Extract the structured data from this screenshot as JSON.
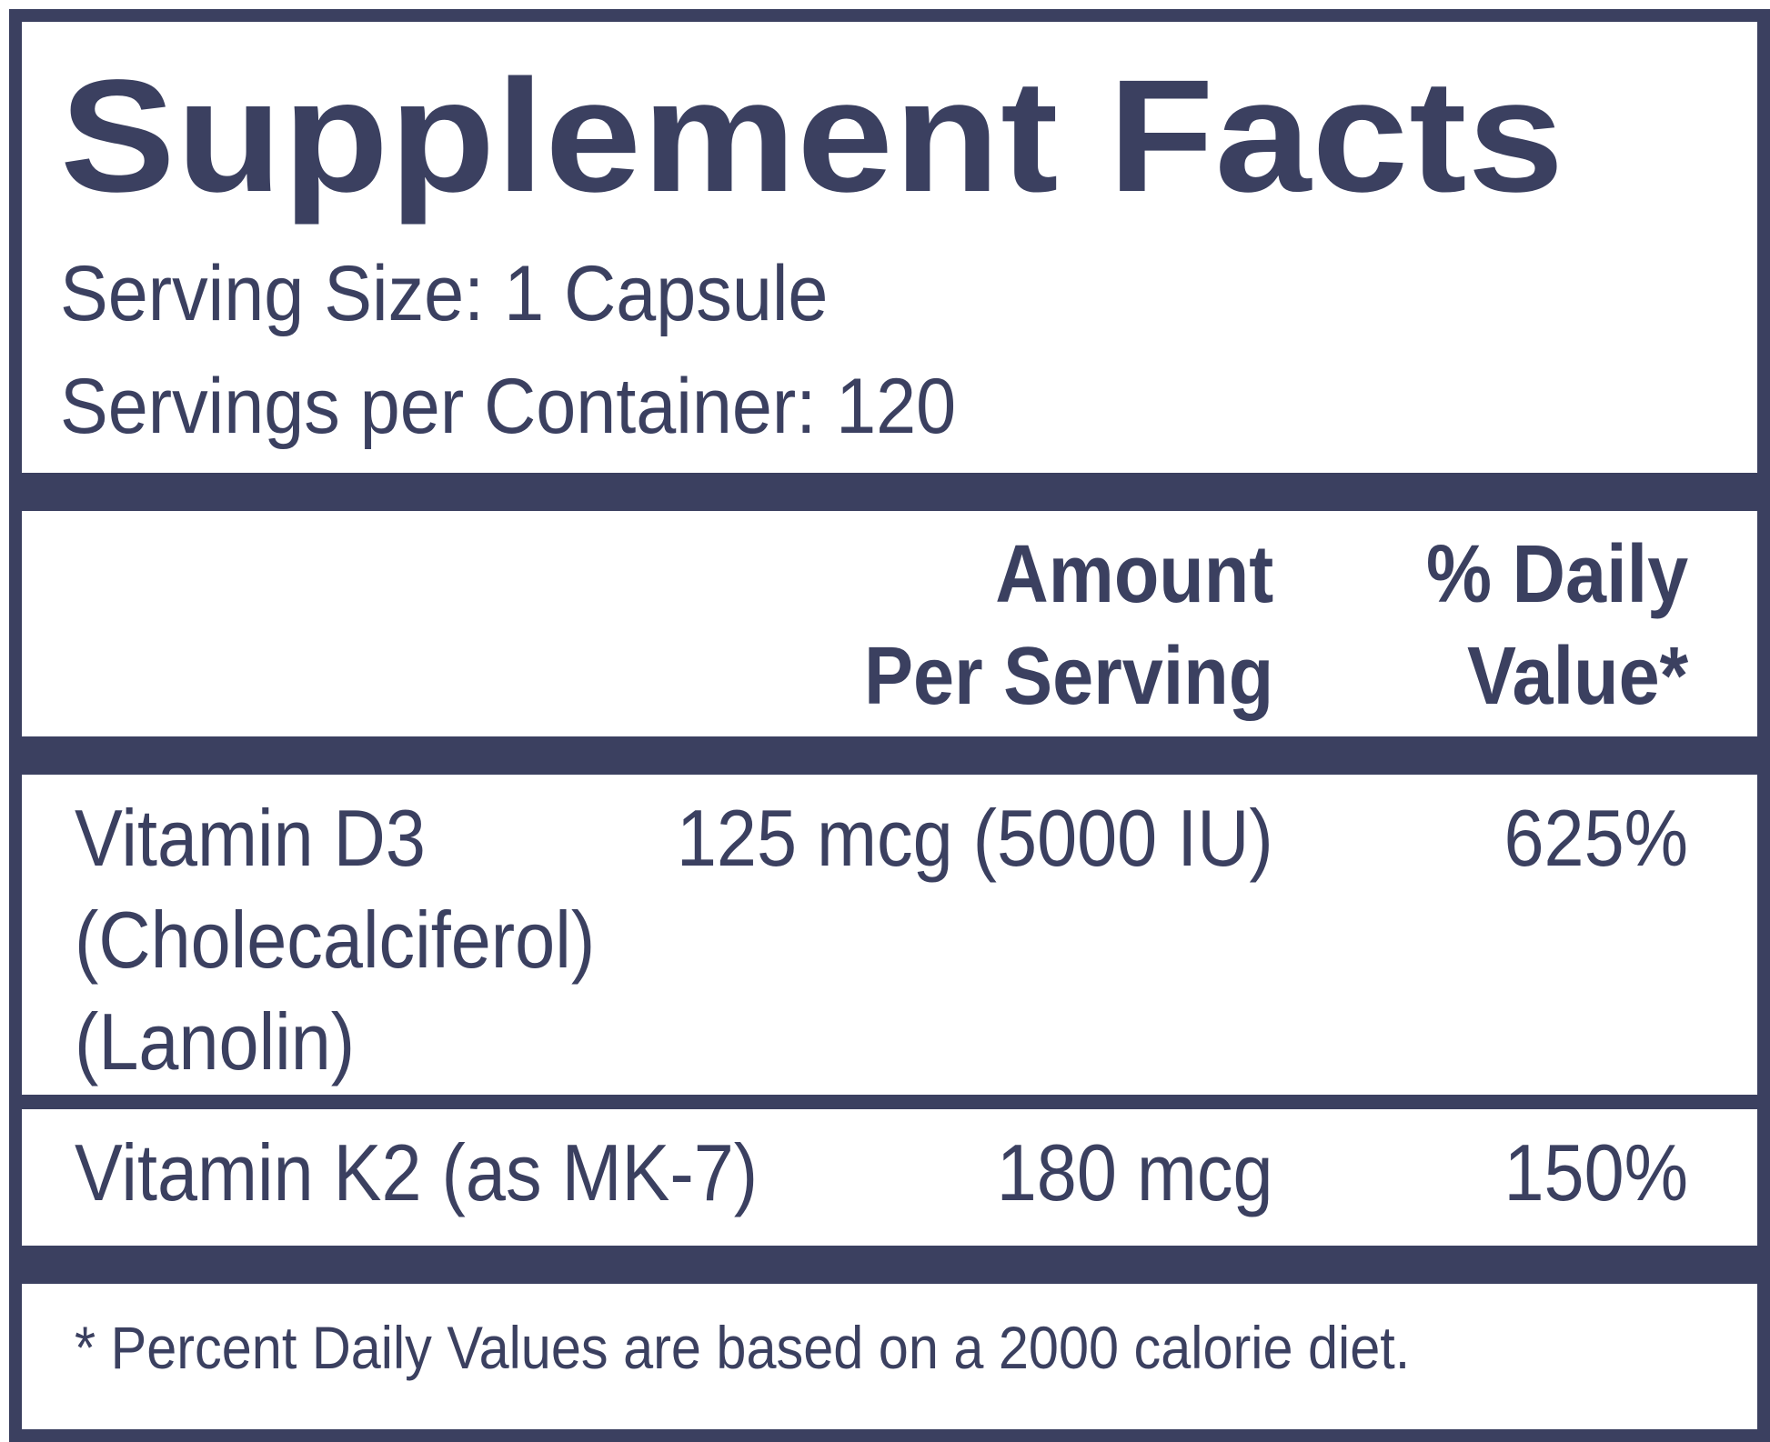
{
  "label": {
    "title": "Supplement Facts",
    "serving_size": "Serving Size: 1 Capsule",
    "servings_per_container": "Servings per Container: 120"
  },
  "table": {
    "header_amount_line1": "Amount",
    "header_amount_line2": "Per Serving",
    "header_dv_line1": "% Daily",
    "header_dv_line2": "Value*",
    "rows": [
      {
        "name_lines": [
          "Vitamin D3",
          "(Cholecalciferol)",
          "(Lanolin)"
        ],
        "amount": "125 mcg (5000 IU)",
        "daily_value": "625%"
      },
      {
        "name_lines": [
          "Vitamin K2 (as MK-7)"
        ],
        "amount": "180 mcg",
        "daily_value": "150%"
      }
    ]
  },
  "footnote": "* Percent Daily Values are based on a 2000 calorie diet.",
  "colors": {
    "ink": "#3b4060",
    "background": "#ffffff"
  }
}
